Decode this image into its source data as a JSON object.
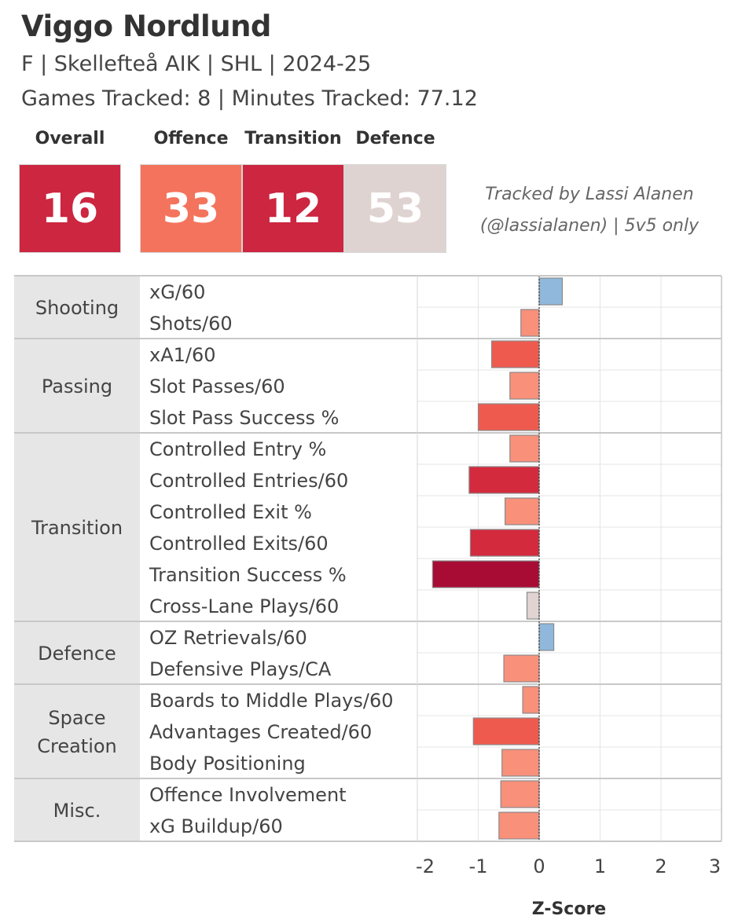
{
  "header": {
    "player_name": "Viggo Nordlund",
    "subtitle": "F | Skellefteå AIK | SHL | 2024-25",
    "games_line": "Games Tracked: 8 | Minutes Tracked: 77.12"
  },
  "scores": [
    {
      "label": "Overall",
      "value": "16",
      "color": "#cc2640"
    },
    {
      "label": "Offence",
      "value": "33",
      "color": "#f4735d"
    },
    {
      "label": "Transition",
      "value": "12",
      "color": "#cc2640"
    },
    {
      "label": "Defence",
      "value": "53",
      "color": "#dfd3d1"
    }
  ],
  "credit": {
    "line1": "Tracked by Lassi Alanen",
    "line2": "(@lassialanen) | 5v5 only"
  },
  "chart_data": {
    "type": "bar",
    "orientation": "horizontal",
    "xlabel": "Z-Score",
    "xlim": [
      -2,
      3
    ],
    "ticks": [
      -2,
      -1,
      0,
      1,
      2,
      3
    ],
    "groups": [
      {
        "category": "Shooting",
        "metrics": [
          {
            "name": "xG/60",
            "value": 0.38,
            "color": "#8fb8dc"
          },
          {
            "name": "Shots/60",
            "value": -0.3,
            "color": "#f8907a"
          }
        ]
      },
      {
        "category": "Passing",
        "metrics": [
          {
            "name": "xA1/60",
            "value": -0.78,
            "color": "#ef5a4f"
          },
          {
            "name": "Slot Passes/60",
            "value": -0.48,
            "color": "#f8907a"
          },
          {
            "name": "Slot Pass Success %",
            "value": -1.0,
            "color": "#ef5a4f"
          }
        ]
      },
      {
        "category": "Transition",
        "metrics": [
          {
            "name": "Controlled Entry %",
            "value": -0.48,
            "color": "#f8907a"
          },
          {
            "name": "Controlled Entries/60",
            "value": -1.15,
            "color": "#d42a3e"
          },
          {
            "name": "Controlled Exit %",
            "value": -0.56,
            "color": "#f8907a"
          },
          {
            "name": "Controlled Exits/60",
            "value": -1.13,
            "color": "#d42a3e"
          },
          {
            "name": "Transition Success %",
            "value": -1.75,
            "color": "#a80c34"
          },
          {
            "name": "Cross-Lane Plays/60",
            "value": -0.2,
            "color": "#e0d3d1"
          }
        ]
      },
      {
        "category": "Defence",
        "metrics": [
          {
            "name": "OZ Retrievals/60",
            "value": 0.24,
            "color": "#8fb8dc"
          },
          {
            "name": "Defensive Plays/CA",
            "value": -0.58,
            "color": "#f8907a"
          }
        ]
      },
      {
        "category": "Space Creation",
        "category_lines": [
          "Space",
          "Creation"
        ],
        "metrics": [
          {
            "name": "Boards to Middle Plays/60",
            "value": -0.27,
            "color": "#f8907a"
          },
          {
            "name": "Advantages Created/60",
            "value": -1.08,
            "color": "#ef5a4f"
          },
          {
            "name": "Body Positioning",
            "value": -0.61,
            "color": "#f8907a"
          }
        ]
      },
      {
        "category": "Misc.",
        "metrics": [
          {
            "name": "Offence Involvement",
            "value": -0.63,
            "color": "#f8907a"
          },
          {
            "name": "xG Buildup/60",
            "value": -0.66,
            "color": "#f8907a"
          }
        ]
      }
    ]
  }
}
